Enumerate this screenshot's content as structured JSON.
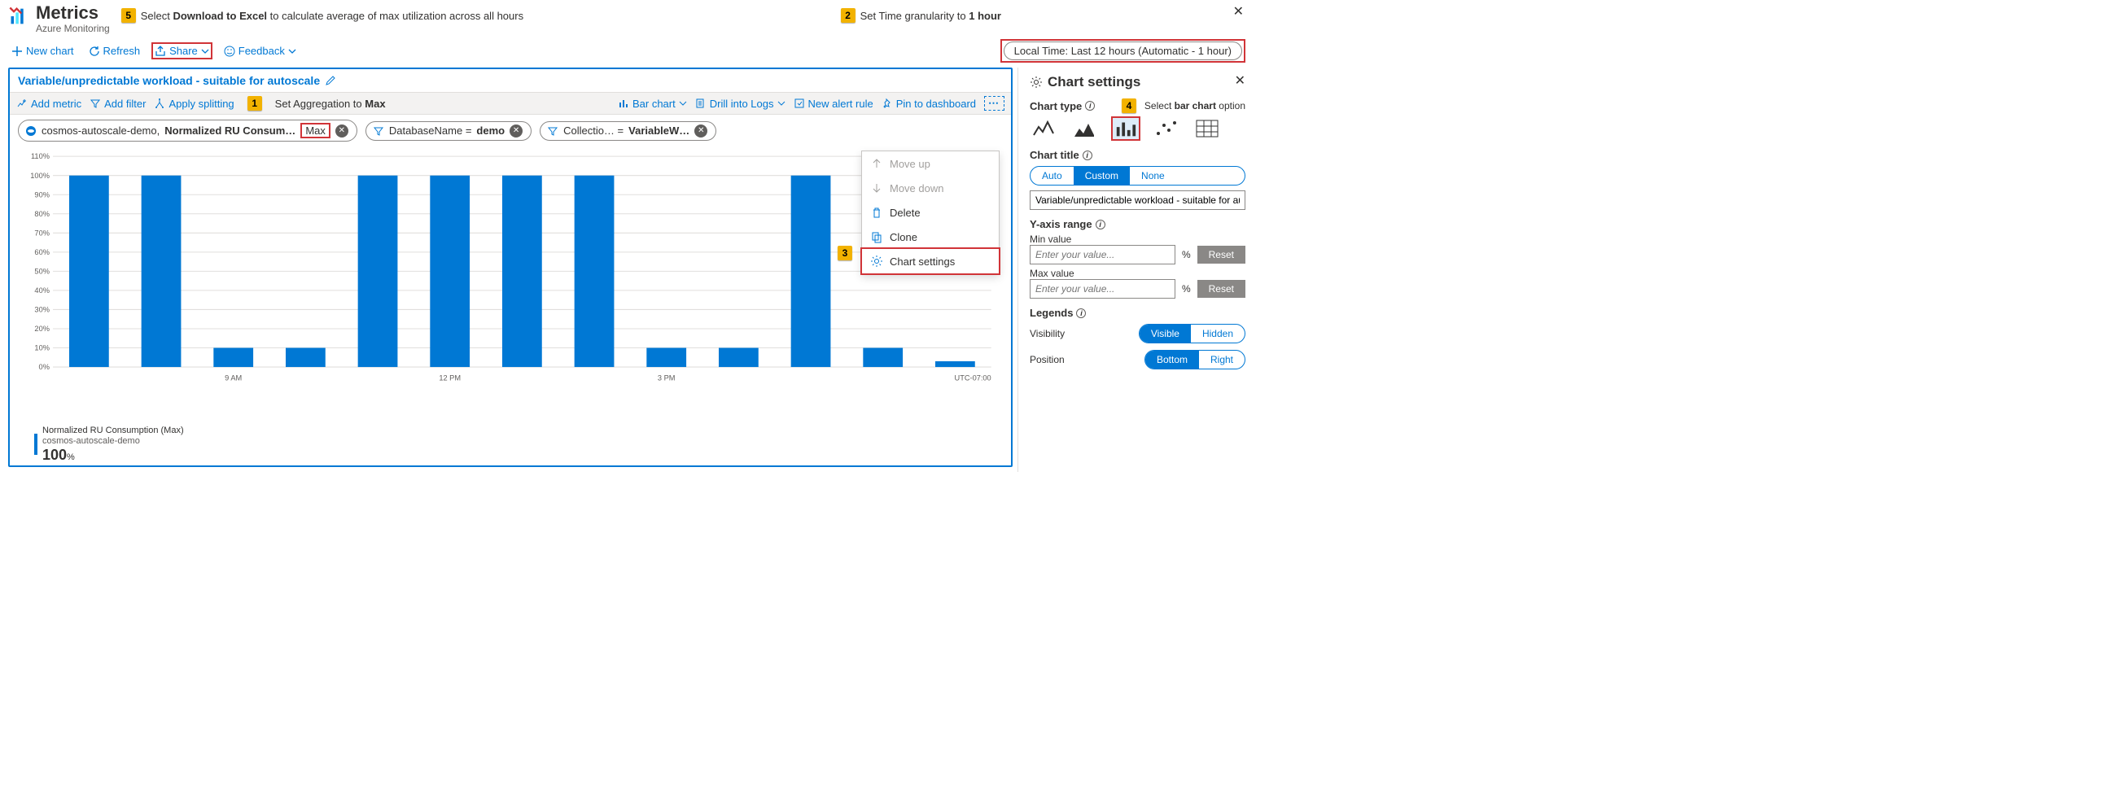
{
  "header": {
    "title": "Metrics",
    "subtitle": "Azure Monitoring",
    "callout5_num": "5",
    "callout5_text_pre": "Select ",
    "callout5_text_bold": "Download to Excel",
    "callout5_text_post": " to calculate average of max utilization across all hours",
    "callout2_num": "2",
    "callout2_text_pre": "Set Time granularity to ",
    "callout2_text_bold": "1 hour"
  },
  "toolbar": {
    "new_chart": "New chart",
    "refresh": "Refresh",
    "share": "Share",
    "feedback": "Feedback",
    "time_pill": "Local Time: Last 12 hours (Automatic - 1 hour)"
  },
  "chart": {
    "title": "Variable/unpredictable workload - suitable for autoscale",
    "tb": {
      "add_metric": "Add metric",
      "add_filter": "Add filter",
      "apply_splitting": "Apply splitting",
      "callout1_num": "1",
      "callout1_text_pre": "Set Aggregation to ",
      "callout1_text_bold": "Max",
      "bar_chart": "Bar chart",
      "drill_logs": "Drill into Logs",
      "new_alert": "New alert rule",
      "pin": "Pin to dashboard"
    },
    "pills": {
      "metric_scope": "cosmos-autoscale-demo,",
      "metric_name": " Normalized RU Consum…",
      "agg": "Max",
      "db_label": "DatabaseName = ",
      "db_val": "demo",
      "coll_label": "Collectio… = ",
      "coll_val": "VariableW…"
    },
    "bars": {
      "values_pct": [
        100,
        100,
        10,
        10,
        100,
        100,
        100,
        100,
        10,
        10,
        100,
        10,
        3
      ],
      "ylabels": [
        "110%",
        "100%",
        "90%",
        "80%",
        "70%",
        "60%",
        "50%",
        "40%",
        "30%",
        "20%",
        "10%",
        "0%"
      ],
      "y_max": 110,
      "xlabels_map": {
        "2": "9 AM",
        "5": "12 PM",
        "8": "3 PM"
      },
      "tz": "UTC-07:00",
      "bar_color": "#0078d4",
      "grid_color": "#e1dfdd"
    },
    "legend": {
      "line1": "Normalized RU Consumption (Max)",
      "line2": "cosmos-autoscale-demo",
      "big": "100",
      "pct": "%"
    }
  },
  "context_menu": {
    "callout3_num": "3",
    "items": [
      {
        "label": "Move up",
        "disabled": true,
        "icon": "up"
      },
      {
        "label": "Move down",
        "disabled": true,
        "icon": "down"
      },
      {
        "label": "Delete",
        "disabled": false,
        "icon": "trash"
      },
      {
        "label": "Clone",
        "disabled": false,
        "icon": "copy"
      },
      {
        "label": "Chart settings",
        "disabled": false,
        "icon": "gear",
        "highlight": true
      }
    ]
  },
  "side": {
    "title": "Chart settings",
    "chart_type_label": "Chart type",
    "callout4_num": "4",
    "callout4_text_pre": "Select ",
    "callout4_text_bold": "bar chart",
    "callout4_text_post": " option",
    "chart_title_label": "Chart title",
    "seg_title": [
      "Auto",
      "Custom",
      "None"
    ],
    "seg_title_active": 1,
    "title_input": "Variable/unpredictable workload - suitable for aut",
    "yaxis_label": "Y-axis range",
    "min_label": "Min value",
    "max_label": "Max value",
    "placeholder": "Enter your value...",
    "pct": "%",
    "reset": "Reset",
    "legends_label": "Legends",
    "visibility_label": "Visibility",
    "seg_vis": [
      "Visible",
      "Hidden"
    ],
    "seg_vis_active": 0,
    "position_label": "Position",
    "seg_pos": [
      "Bottom",
      "Right"
    ],
    "seg_pos_active": 0
  }
}
